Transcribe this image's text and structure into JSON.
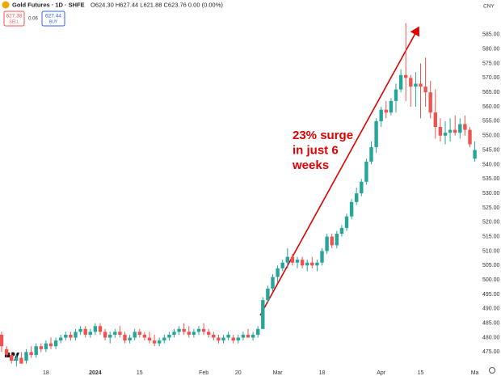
{
  "header": {
    "title": "Gold Futures · 1D · SHFE",
    "ohlc": "O624.30 H627.44 L621.88 C623.76 0.00 (0.00%)",
    "sell_price": "627.38",
    "sell_label": "SELL",
    "spread": "0.06",
    "buy_price": "627.44",
    "buy_label": "BUY",
    "currency": "CNY"
  },
  "chart_data": {
    "type": "candlestick",
    "annotation": [
      "23% surge",
      "in just 6",
      "weeks"
    ],
    "categories": [
      null,
      null,
      null,
      null,
      null,
      null,
      null,
      null,
      null,
      "18",
      null,
      null,
      null,
      null,
      null,
      null,
      null,
      null,
      null,
      "2024",
      null,
      null,
      null,
      null,
      null,
      null,
      null,
      null,
      "15",
      null,
      null,
      null,
      null,
      null,
      null,
      null,
      null,
      null,
      null,
      null,
      null,
      "Feb",
      null,
      null,
      null,
      null,
      null,
      null,
      "20",
      null,
      null,
      null,
      null,
      null,
      null,
      null,
      "Mar",
      null,
      null,
      null,
      null,
      null,
      null,
      null,
      null,
      "18",
      null,
      null,
      null,
      null,
      null,
      null,
      null,
      null,
      null,
      null,
      null,
      "Apr",
      null,
      null,
      null,
      null,
      null,
      null,
      null,
      "15",
      null,
      null,
      null,
      null,
      null,
      null,
      null,
      null,
      null,
      null,
      "Ma"
    ],
    "open": [
      481,
      476,
      474,
      472,
      473,
      472,
      475,
      474,
      477,
      476,
      478,
      477,
      479,
      480,
      481,
      480,
      482,
      483,
      481,
      482,
      484,
      482,
      480,
      481,
      482,
      481,
      479,
      480,
      482,
      481,
      480,
      479,
      478,
      479,
      480,
      481,
      482,
      483,
      482,
      481,
      482,
      483,
      482,
      481,
      480,
      479,
      480,
      480,
      479,
      480,
      481,
      480,
      481,
      483,
      493,
      497,
      501,
      504,
      506,
      508,
      506,
      507,
      505,
      506,
      505,
      506,
      510,
      515,
      512,
      516,
      518,
      522,
      527,
      530,
      534,
      541,
      546,
      555,
      559,
      558,
      562,
      566,
      571,
      570,
      567,
      568,
      567,
      565,
      558,
      553,
      550,
      551,
      552,
      551,
      554,
      552,
      542
    ],
    "high": [
      482,
      477,
      475,
      474,
      475,
      476,
      477,
      478,
      478,
      479,
      480,
      480,
      481,
      482,
      482,
      483,
      484,
      484,
      483,
      485,
      485,
      483,
      482,
      483,
      484,
      482,
      481,
      483,
      483,
      482,
      482,
      481,
      480,
      481,
      482,
      483,
      484,
      485,
      484,
      483,
      484,
      485,
      483,
      482,
      481,
      481,
      482,
      481,
      481,
      482,
      483,
      482,
      484,
      494,
      498,
      502,
      505,
      507,
      511,
      509,
      508,
      508,
      507,
      508,
      507,
      511,
      516,
      516,
      517,
      519,
      523,
      528,
      532,
      535,
      542,
      548,
      556,
      560,
      562,
      563,
      568,
      573,
      589,
      571,
      572,
      575,
      577,
      569,
      566,
      556,
      555,
      556,
      557,
      556,
      557,
      553,
      548
    ],
    "low": [
      475,
      473,
      471,
      470,
      471,
      471,
      473,
      473,
      475,
      475,
      476,
      476,
      478,
      479,
      479,
      479,
      481,
      480,
      480,
      481,
      481,
      479,
      478,
      480,
      480,
      478,
      478,
      479,
      480,
      479,
      478,
      477,
      477,
      478,
      479,
      480,
      481,
      481,
      480,
      480,
      481,
      481,
      480,
      479,
      478,
      478,
      479,
      478,
      478,
      479,
      480,
      479,
      480,
      483,
      492,
      496,
      499,
      503,
      504,
      505,
      504,
      504,
      503,
      504,
      503,
      505,
      509,
      511,
      511,
      515,
      517,
      521,
      526,
      529,
      533,
      540,
      544,
      553,
      556,
      557,
      558,
      565,
      562,
      560,
      560,
      556,
      560,
      556,
      549,
      548,
      547,
      548,
      550,
      549,
      550,
      546,
      541
    ],
    "close": [
      477,
      474,
      472,
      473,
      471,
      475,
      474,
      477,
      476,
      478,
      477,
      479,
      480,
      481,
      480,
      482,
      483,
      481,
      482,
      484,
      482,
      480,
      481,
      482,
      481,
      479,
      480,
      482,
      481,
      480,
      479,
      478,
      479,
      480,
      481,
      482,
      483,
      482,
      481,
      482,
      483,
      482,
      481,
      480,
      479,
      480,
      481,
      479,
      480,
      481,
      480,
      481,
      483,
      493,
      497,
      501,
      504,
      506,
      508,
      506,
      507,
      505,
      506,
      505,
      506,
      510,
      515,
      512,
      516,
      518,
      522,
      527,
      530,
      534,
      541,
      546,
      555,
      559,
      558,
      562,
      566,
      571,
      570,
      567,
      568,
      567,
      565,
      558,
      553,
      550,
      551,
      552,
      551,
      554,
      552,
      547,
      545
    ],
    "up_color": "#26a69a",
    "down_color": "#ef5350",
    "ylim": [
      469.5,
      597
    ],
    "yticks": [
      {
        "value": 475,
        "label": "475.00"
      },
      {
        "value": 480,
        "label": "480.00"
      },
      {
        "value": 485,
        "label": "485.00"
      },
      {
        "value": 490,
        "label": "490.00"
      },
      {
        "value": 495,
        "label": "495.00"
      },
      {
        "value": 500,
        "label": "500.00"
      },
      {
        "value": 505,
        "label": "505.00"
      },
      {
        "value": 510,
        "label": "510.00"
      },
      {
        "value": 515,
        "label": "515.00"
      },
      {
        "value": 520,
        "label": "520.00"
      },
      {
        "value": 525,
        "label": "525.00"
      },
      {
        "value": 530,
        "label": "530.00"
      },
      {
        "value": 535,
        "label": "535.00"
      },
      {
        "value": 540,
        "label": "540.00"
      },
      {
        "value": 545,
        "label": "545.00"
      },
      {
        "value": 550,
        "label": "550.00"
      },
      {
        "value": 555,
        "label": "555.00"
      },
      {
        "value": 560,
        "label": "560.00"
      },
      {
        "value": 565,
        "label": "565.00"
      },
      {
        "value": 570,
        "label": "570.00"
      },
      {
        "value": 575,
        "label": "575.00"
      },
      {
        "value": 580,
        "label": "580.00"
      },
      {
        "value": 585,
        "label": "585.00"
      }
    ],
    "grid": false
  }
}
